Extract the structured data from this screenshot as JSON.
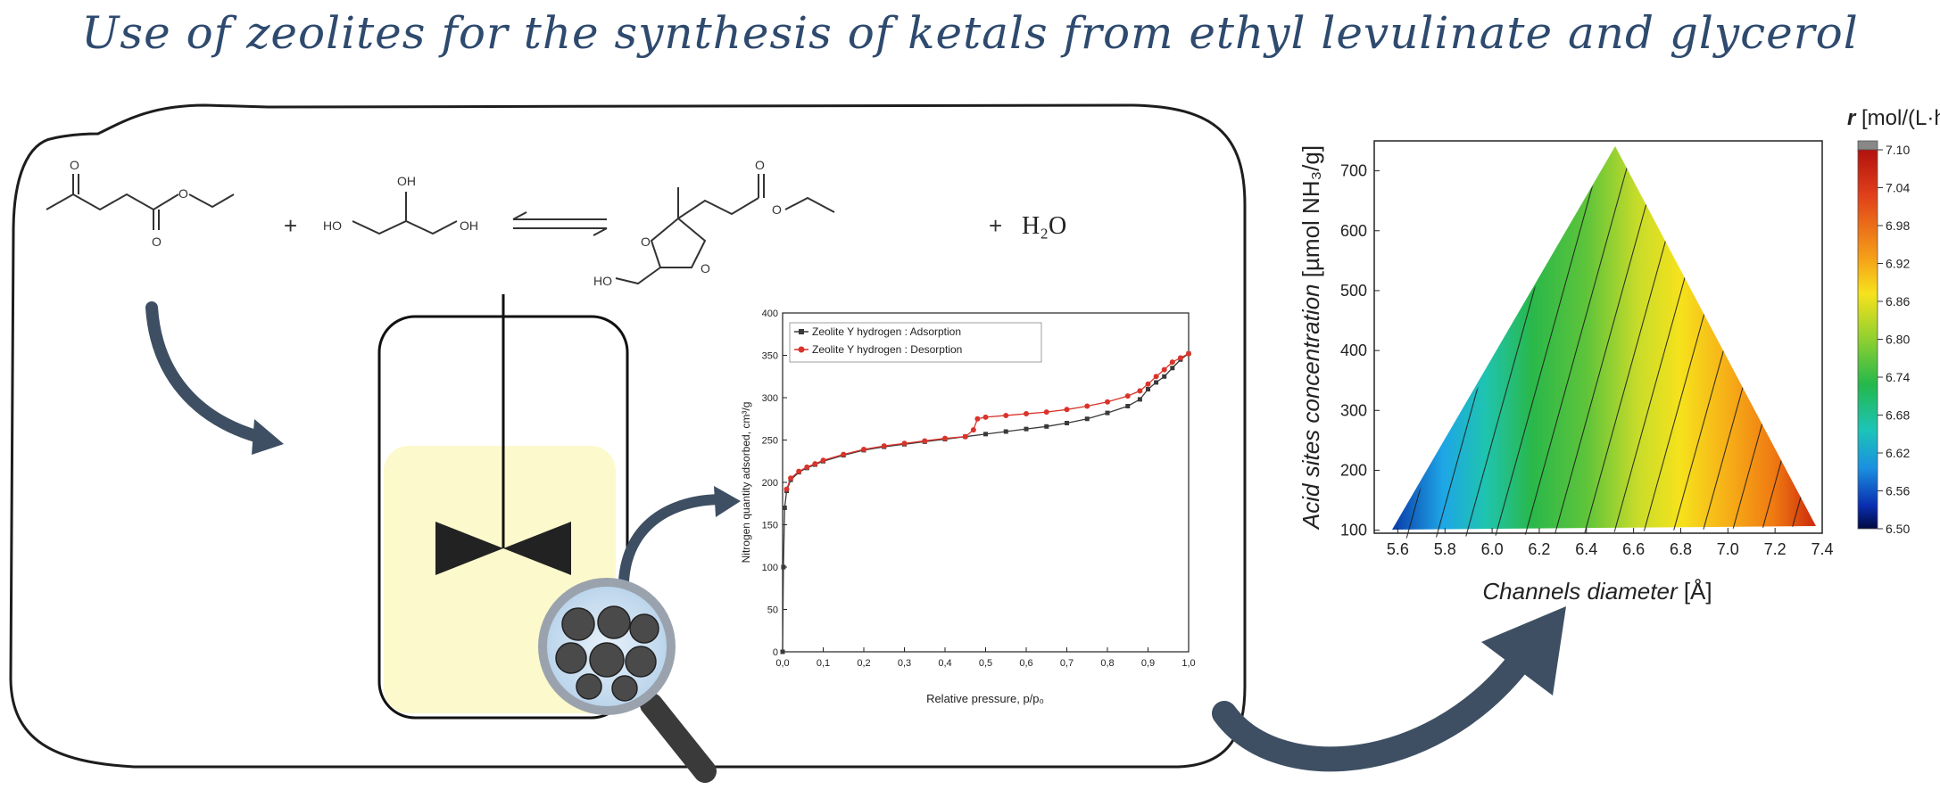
{
  "title": "Use of zeolites for the synthesis of ketals from ethyl levulinate and glycerol",
  "reaction": {
    "oh_top": "OH",
    "ho_left": "HO",
    "oh_right": "OH",
    "o_ketone": "O",
    "o_ester_single": "O",
    "o_ester_double": "O",
    "o_prod_double": "O",
    "o_prod_single": "O",
    "o_ring_upper": "O",
    "o_ring_lower": "O",
    "ho_prod": "HO",
    "plus1": "+",
    "plus2": "+",
    "water": "H₂O"
  },
  "isotherm": {
    "ylabel": "Nitrogen quantity adsorbed, cm³/g",
    "xlabel": "Relative pressure, p/p₀",
    "legend_adsorption": "Zeolite Y hydrogen : Adsorption",
    "legend_desorption": "Zeolite Y hydrogen : Desorption",
    "xticks": [
      "0,0",
      "0,1",
      "0,2",
      "0,3",
      "0,4",
      "0,5",
      "0,6",
      "0,7",
      "0,8",
      "0,9",
      "1,0"
    ],
    "yticks": [
      "0",
      "50",
      "100",
      "150",
      "200",
      "250",
      "300",
      "350",
      "400"
    ],
    "colors": {
      "adsorption": "#3a3a3a",
      "desorption": "#d9342b"
    }
  },
  "contour": {
    "ylabel_main": "Acid sites concentration",
    "ylabel_unit": " [µmol NH₃/g]",
    "xlabel_main": "Channels diameter",
    "xlabel_unit": " [Å]",
    "xticks": [
      "5.6",
      "5.8",
      "6.0",
      "6.2",
      "6.4",
      "6.6",
      "6.8",
      "7.0",
      "7.2",
      "7.4"
    ],
    "yticks": [
      "100",
      "200",
      "300",
      "400",
      "500",
      "600",
      "700"
    ],
    "colorbar_title_var": "r",
    "colorbar_title_unit": " [mol/(L·h)]",
    "colorbar_ticks": [
      "7.10",
      "7.04",
      "6.98",
      "6.92",
      "6.86",
      "6.80",
      "6.74",
      "6.68",
      "6.62",
      "6.56",
      "6.50"
    ]
  },
  "chart_data": [
    {
      "type": "line",
      "xlabel": "Relative pressure, p/p₀",
      "ylabel": "Nitrogen quantity adsorbed, cm³/g",
      "xlim": [
        0,
        1.0
      ],
      "ylim": [
        0,
        400
      ],
      "legend": "top-left",
      "series": [
        {
          "name": "Zeolite Y hydrogen : Adsorption",
          "x": [
            0.0,
            0.002,
            0.005,
            0.01,
            0.02,
            0.04,
            0.06,
            0.08,
            0.1,
            0.15,
            0.2,
            0.25,
            0.3,
            0.35,
            0.4,
            0.45,
            0.5,
            0.55,
            0.6,
            0.65,
            0.7,
            0.75,
            0.8,
            0.85,
            0.88,
            0.9,
            0.92,
            0.94,
            0.96,
            0.98,
            1.0
          ],
          "y": [
            0,
            100,
            170,
            190,
            203,
            212,
            217,
            221,
            225,
            232,
            238,
            242,
            245,
            248,
            251,
            254,
            257,
            260,
            263,
            266,
            270,
            275,
            282,
            290,
            298,
            310,
            318,
            325,
            335,
            345,
            352
          ]
        },
        {
          "name": "Zeolite Y hydrogen : Desorption",
          "x": [
            0.01,
            0.02,
            0.04,
            0.06,
            0.08,
            0.1,
            0.15,
            0.2,
            0.25,
            0.3,
            0.35,
            0.4,
            0.45,
            0.47,
            0.48,
            0.5,
            0.55,
            0.6,
            0.65,
            0.7,
            0.75,
            0.8,
            0.85,
            0.88,
            0.9,
            0.92,
            0.94,
            0.96,
            0.98,
            1.0
          ],
          "y": [
            192,
            205,
            213,
            218,
            222,
            226,
            233,
            239,
            243,
            246,
            249,
            252,
            254,
            262,
            275,
            277,
            279,
            281,
            283,
            286,
            290,
            295,
            302,
            308,
            316,
            325,
            333,
            342,
            347,
            352
          ]
        }
      ]
    },
    {
      "type": "heatmap",
      "xlabel": "Channels diameter [Å]",
      "ylabel": "Acid sites concentration [µmol NH₃/g]",
      "xlim": [
        5.5,
        7.4
      ],
      "ylim": [
        100,
        750
      ],
      "colorbar_label": "r [mol/(L·h)]",
      "colorbar_range": [
        6.5,
        7.1
      ],
      "domain_vertices": [
        [
          5.5,
          100
        ],
        [
          6.5,
          740
        ],
        [
          7.4,
          120
        ]
      ]
    }
  ]
}
